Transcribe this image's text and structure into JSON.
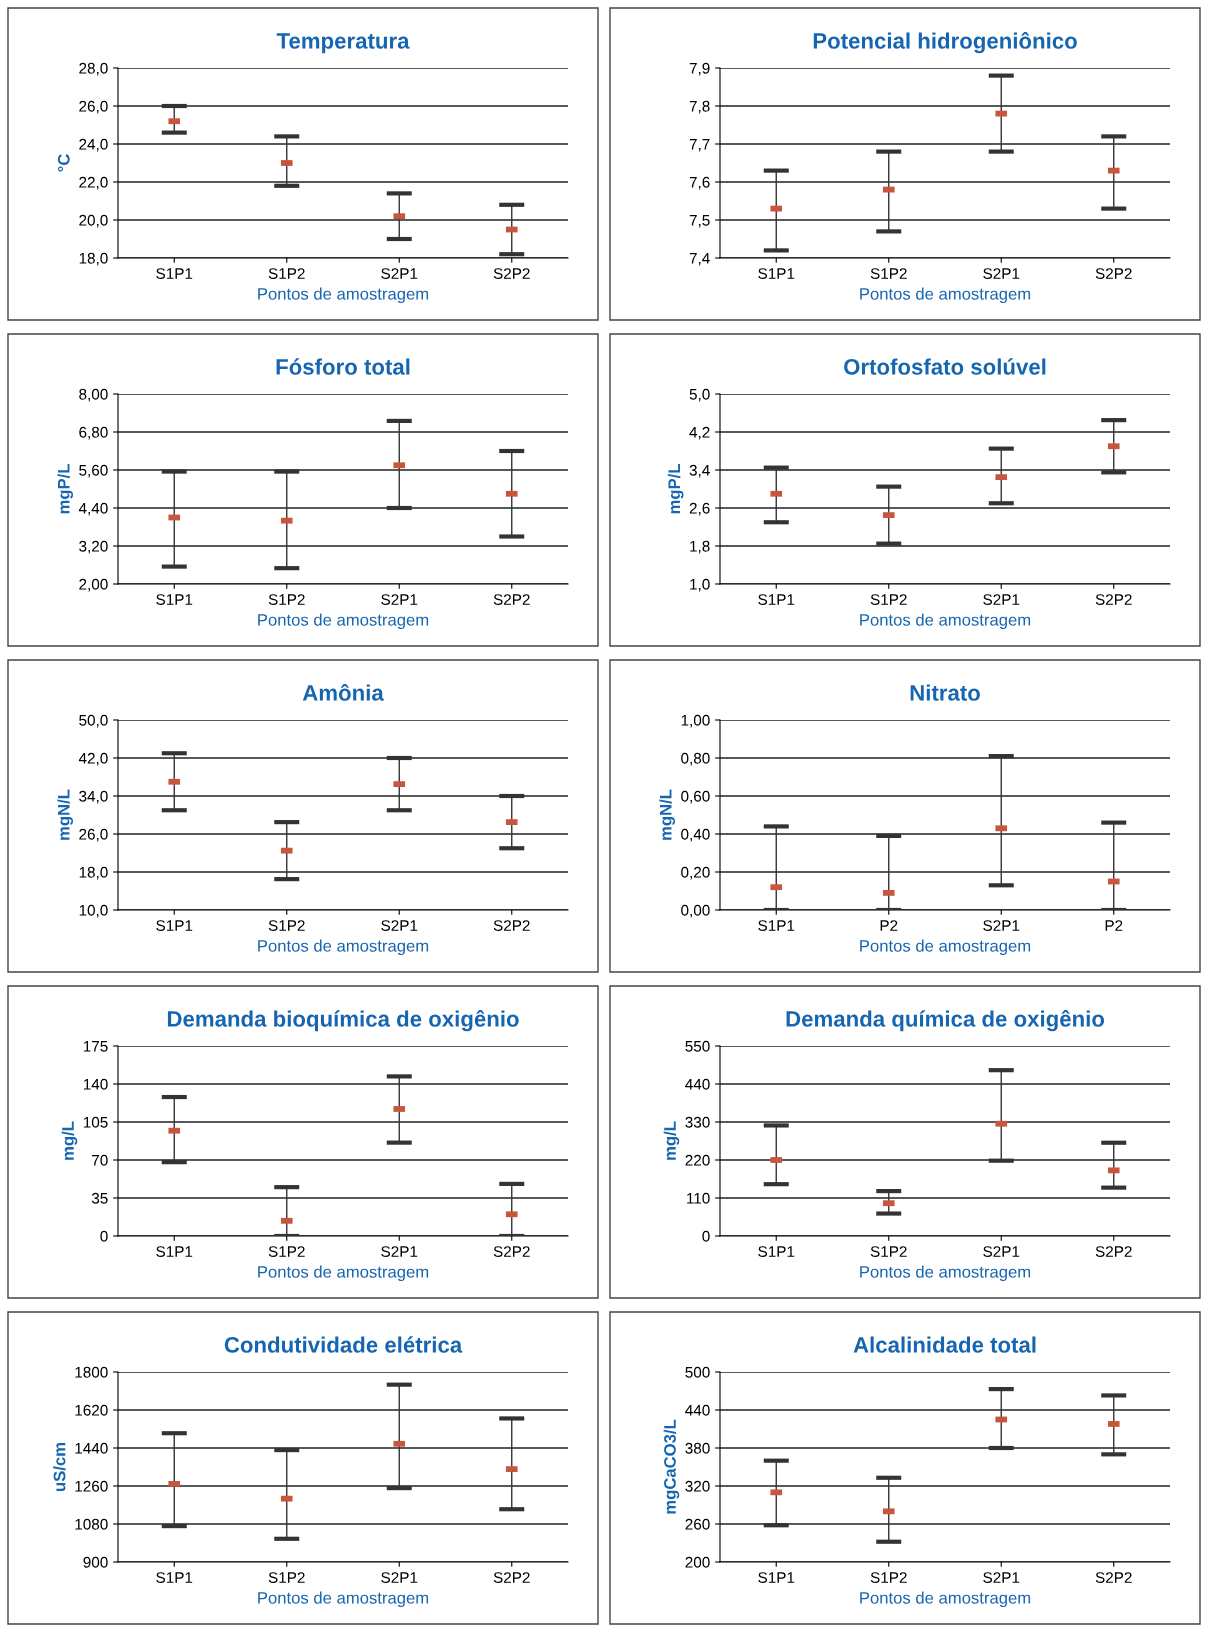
{
  "chart_data": [
    {
      "type": "scatter",
      "title": "Temperatura",
      "xlabel": "Pontos de amostragem",
      "ylabel": "°C",
      "categories": [
        "S1P1",
        "S1P2",
        "S2P1",
        "S2P2"
      ],
      "values": [
        25.2,
        23.0,
        20.2,
        19.5
      ],
      "errors": [
        [
          24.6,
          26.0
        ],
        [
          21.8,
          24.4
        ],
        [
          19.0,
          21.4
        ],
        [
          18.2,
          20.8
        ]
      ],
      "color": "#c8553d",
      "ylim": [
        18,
        28
      ],
      "yticks": [
        {
          "value": 18,
          "label": "18,0"
        },
        {
          "value": 20,
          "label": "20,0"
        },
        {
          "value": 22,
          "label": "22,0"
        },
        {
          "value": 24,
          "label": "24,0"
        },
        {
          "value": 26,
          "label": "26,0"
        },
        {
          "value": 28,
          "label": "28,0"
        }
      ],
      "grid": "y"
    },
    {
      "type": "scatter",
      "title": "Potencial hidrogeniônico",
      "xlabel": "Pontos de amostragem",
      "categories": [
        "S1P1",
        "S1P2",
        "S2P1",
        "S2P2"
      ],
      "values": [
        7.53,
        7.58,
        7.78,
        7.63
      ],
      "errors": [
        [
          7.42,
          7.63
        ],
        [
          7.47,
          7.68
        ],
        [
          7.68,
          7.88
        ],
        [
          7.53,
          7.72
        ]
      ],
      "color": "#c8553d",
      "ylim": [
        7.4,
        7.9
      ],
      "yticks": [
        {
          "value": 7.4,
          "label": "7,4"
        },
        {
          "value": 7.5,
          "label": "7,5"
        },
        {
          "value": 7.6,
          "label": "7,6"
        },
        {
          "value": 7.7,
          "label": "7,7"
        },
        {
          "value": 7.8,
          "label": "7,8"
        },
        {
          "value": 7.9,
          "label": "7,9"
        }
      ],
      "grid": "y"
    },
    {
      "type": "scatter",
      "title": "Fósforo total",
      "xlabel": "Pontos de amostragem",
      "ylabel": "mgP/L",
      "categories": [
        "S1P1",
        "S1P2",
        "S2P1",
        "S2P2"
      ],
      "values": [
        4.1,
        4.0,
        5.75,
        4.85
      ],
      "errors": [
        [
          2.55,
          5.55
        ],
        [
          2.5,
          5.55
        ],
        [
          4.4,
          7.15
        ],
        [
          3.5,
          6.2
        ]
      ],
      "color": "#c8553d",
      "ylim": [
        2,
        8
      ],
      "yticks": [
        {
          "value": 2,
          "label": "2,00"
        },
        {
          "value": 3.2,
          "label": "3,20"
        },
        {
          "value": 4.4,
          "label": "4,40"
        },
        {
          "value": 5.6,
          "label": "5,60"
        },
        {
          "value": 6.8,
          "label": "6,80"
        },
        {
          "value": 8,
          "label": "8,00"
        }
      ],
      "grid": "y"
    },
    {
      "type": "scatter",
      "title": "Ortofosfato solúvel",
      "xlabel": "Pontos de amostragem",
      "ylabel": "mgP/L",
      "categories": [
        "S1P1",
        "S1P2",
        "S2P1",
        "S2P2"
      ],
      "values": [
        2.9,
        2.45,
        3.25,
        3.9
      ],
      "errors": [
        [
          2.3,
          3.45
        ],
        [
          1.85,
          3.05
        ],
        [
          2.7,
          3.85
        ],
        [
          3.35,
          4.45
        ]
      ],
      "color": "#c8553d",
      "ylim": [
        1,
        5
      ],
      "yticks": [
        {
          "value": 1,
          "label": "1,0"
        },
        {
          "value": 1.8,
          "label": "1,8"
        },
        {
          "value": 2.6,
          "label": "2,6"
        },
        {
          "value": 3.4,
          "label": "3,4"
        },
        {
          "value": 4.2,
          "label": "4,2"
        },
        {
          "value": 5,
          "label": "5,0"
        }
      ],
      "grid": "y"
    },
    {
      "type": "scatter",
      "title": "Amônia",
      "xlabel": "Pontos de amostragem",
      "ylabel": "mgN/L",
      "categories": [
        "S1P1",
        "S1P2",
        "S2P1",
        "S2P2"
      ],
      "values": [
        37,
        22.5,
        36.5,
        28.5
      ],
      "errors": [
        [
          31,
          43
        ],
        [
          16.5,
          28.5
        ],
        [
          31,
          42
        ],
        [
          23,
          34
        ]
      ],
      "color": "#c8553d",
      "ylim": [
        10,
        50
      ],
      "yticks": [
        {
          "value": 10,
          "label": "10,0"
        },
        {
          "value": 18,
          "label": "18,0"
        },
        {
          "value": 26,
          "label": "26,0"
        },
        {
          "value": 34,
          "label": "34,0"
        },
        {
          "value": 42,
          "label": "42,0"
        },
        {
          "value": 50,
          "label": "50,0"
        }
      ],
      "grid": "y"
    },
    {
      "type": "scatter",
      "title": "Nitrato",
      "xlabel": "Pontos de amostragem",
      "ylabel": "mgN/L",
      "categories": [
        "S1P1",
        "P2",
        "S2P1",
        "P2"
      ],
      "values": [
        0.12,
        0.09,
        0.43,
        0.15
      ],
      "errors": [
        [
          0.0,
          0.44
        ],
        [
          0.0,
          0.39
        ],
        [
          0.13,
          0.81
        ],
        [
          0.0,
          0.46
        ]
      ],
      "color": "#c8553d",
      "ylim": [
        0,
        1
      ],
      "yticks": [
        {
          "value": 0,
          "label": "0,00"
        },
        {
          "value": 0.2,
          "label": "0,20"
        },
        {
          "value": 0.4,
          "label": "0,40"
        },
        {
          "value": 0.6,
          "label": "0,60"
        },
        {
          "value": 0.8,
          "label": "0,80"
        },
        {
          "value": 1,
          "label": "1,00"
        }
      ],
      "grid": "y"
    },
    {
      "type": "scatter",
      "title": "Demanda bioquímica de oxigênio",
      "xlabel": "Pontos de amostragem",
      "ylabel": "mg/L",
      "categories": [
        "S1P1",
        "S1P2",
        "S2P1",
        "S2P2"
      ],
      "values": [
        97,
        14,
        117,
        20
      ],
      "errors": [
        [
          68,
          128
        ],
        [
          0,
          45
        ],
        [
          86,
          147
        ],
        [
          0,
          48
        ]
      ],
      "color": "#c8553d",
      "ylim": [
        0,
        175
      ],
      "yticks": [
        0,
        35,
        70,
        105,
        140,
        175
      ],
      "grid": "y"
    },
    {
      "type": "scatter",
      "title": "Demanda química de oxigênio",
      "xlabel": "Pontos de amostragem",
      "ylabel": "mg/L",
      "categories": [
        "S1P1",
        "S1P2",
        "S2P1",
        "S2P2"
      ],
      "values": [
        220,
        95,
        325,
        190
      ],
      "errors": [
        [
          150,
          320
        ],
        [
          65,
          130
        ],
        [
          218,
          480
        ],
        [
          140,
          270
        ]
      ],
      "color": "#c8553d",
      "ylim": [
        0,
        550
      ],
      "yticks": [
        0,
        110,
        220,
        330,
        440,
        550
      ],
      "grid": "y"
    },
    {
      "type": "scatter",
      "title": "Condutividade elétrica",
      "xlabel": "Pontos de amostragem",
      "ylabel": "uS/cm",
      "categories": [
        "S1P1",
        "S1P2",
        "S2P1",
        "S2P2"
      ],
      "values": [
        1270,
        1200,
        1460,
        1340
      ],
      "errors": [
        [
          1070,
          1510
        ],
        [
          1010,
          1430
        ],
        [
          1250,
          1740
        ],
        [
          1150,
          1580
        ]
      ],
      "color": "#c8553d",
      "ylim": [
        900,
        1800
      ],
      "yticks": [
        900,
        1080,
        1260,
        1440,
        1620,
        1800
      ],
      "grid": "y"
    },
    {
      "type": "scatter",
      "title": "Alcalinidade total",
      "xlabel": "Pontos de amostragem",
      "ylabel": "mgCaCO3/L",
      "categories": [
        "S1P1",
        "S1P2",
        "S2P1",
        "S2P2"
      ],
      "values": [
        310,
        280,
        425,
        418
      ],
      "errors": [
        [
          258,
          360
        ],
        [
          232,
          333
        ],
        [
          380,
          473
        ],
        [
          370,
          463
        ]
      ],
      "color": "#c8553d",
      "ylim": [
        200,
        500
      ],
      "yticks": [
        200,
        260,
        320,
        380,
        440,
        500
      ],
      "grid": "y"
    }
  ]
}
